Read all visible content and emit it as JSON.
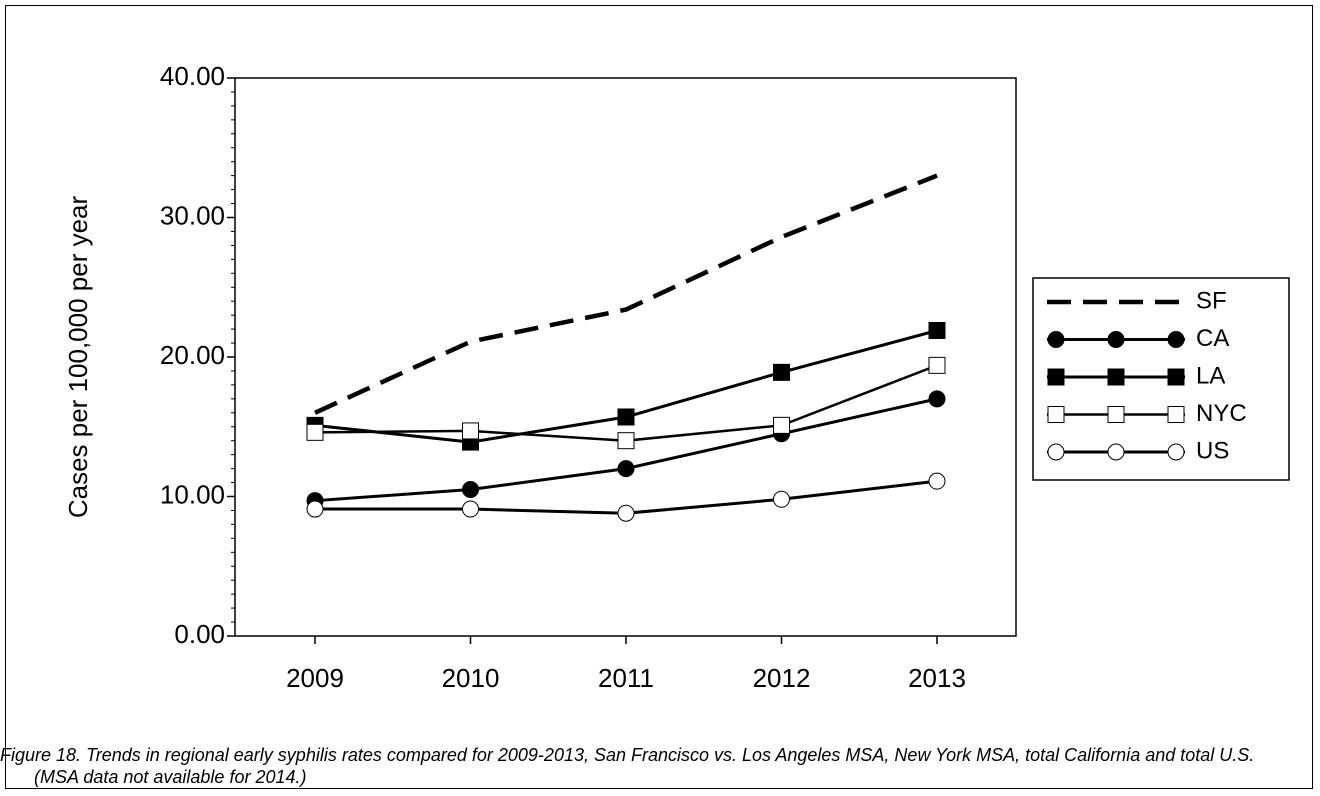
{
  "chart_data": {
    "type": "line",
    "title": "",
    "xlabel": "",
    "ylabel": "Cases per 100,000 per year",
    "categories": [
      "2009",
      "2010",
      "2011",
      "2012",
      "2013"
    ],
    "ylim": [
      0,
      40
    ],
    "y_ticks": [
      "0.00",
      "10.00",
      "20.00",
      "30.00",
      "40.00"
    ],
    "grid": false,
    "legend_position": "right",
    "series": [
      {
        "name": "SF",
        "values": [
          16.0,
          21.1,
          23.4,
          28.6,
          33.0
        ],
        "style": "dashed",
        "marker": "none"
      },
      {
        "name": "CA",
        "values": [
          9.7,
          10.5,
          12.0,
          14.5,
          17.0
        ],
        "style": "solid",
        "marker": "filled-circle"
      },
      {
        "name": "LA",
        "values": [
          15.1,
          13.9,
          15.7,
          18.9,
          21.9
        ],
        "style": "solid",
        "marker": "filled-square"
      },
      {
        "name": "NYC",
        "values": [
          14.6,
          14.7,
          14.0,
          15.1,
          19.4
        ],
        "style": "solid-thin",
        "marker": "open-square"
      },
      {
        "name": "US",
        "values": [
          9.1,
          9.1,
          8.8,
          9.8,
          11.1
        ],
        "style": "solid",
        "marker": "open-circle"
      }
    ]
  },
  "caption": "Figure 18.  Trends in regional early syphilis rates compared for 2009-2013, San Francisco vs. Los Angeles MSA, New York MSA, total California and total U.S.  (MSA data not available for 2014.)",
  "colors": {
    "line": "#000000",
    "background": "#ffffff"
  }
}
